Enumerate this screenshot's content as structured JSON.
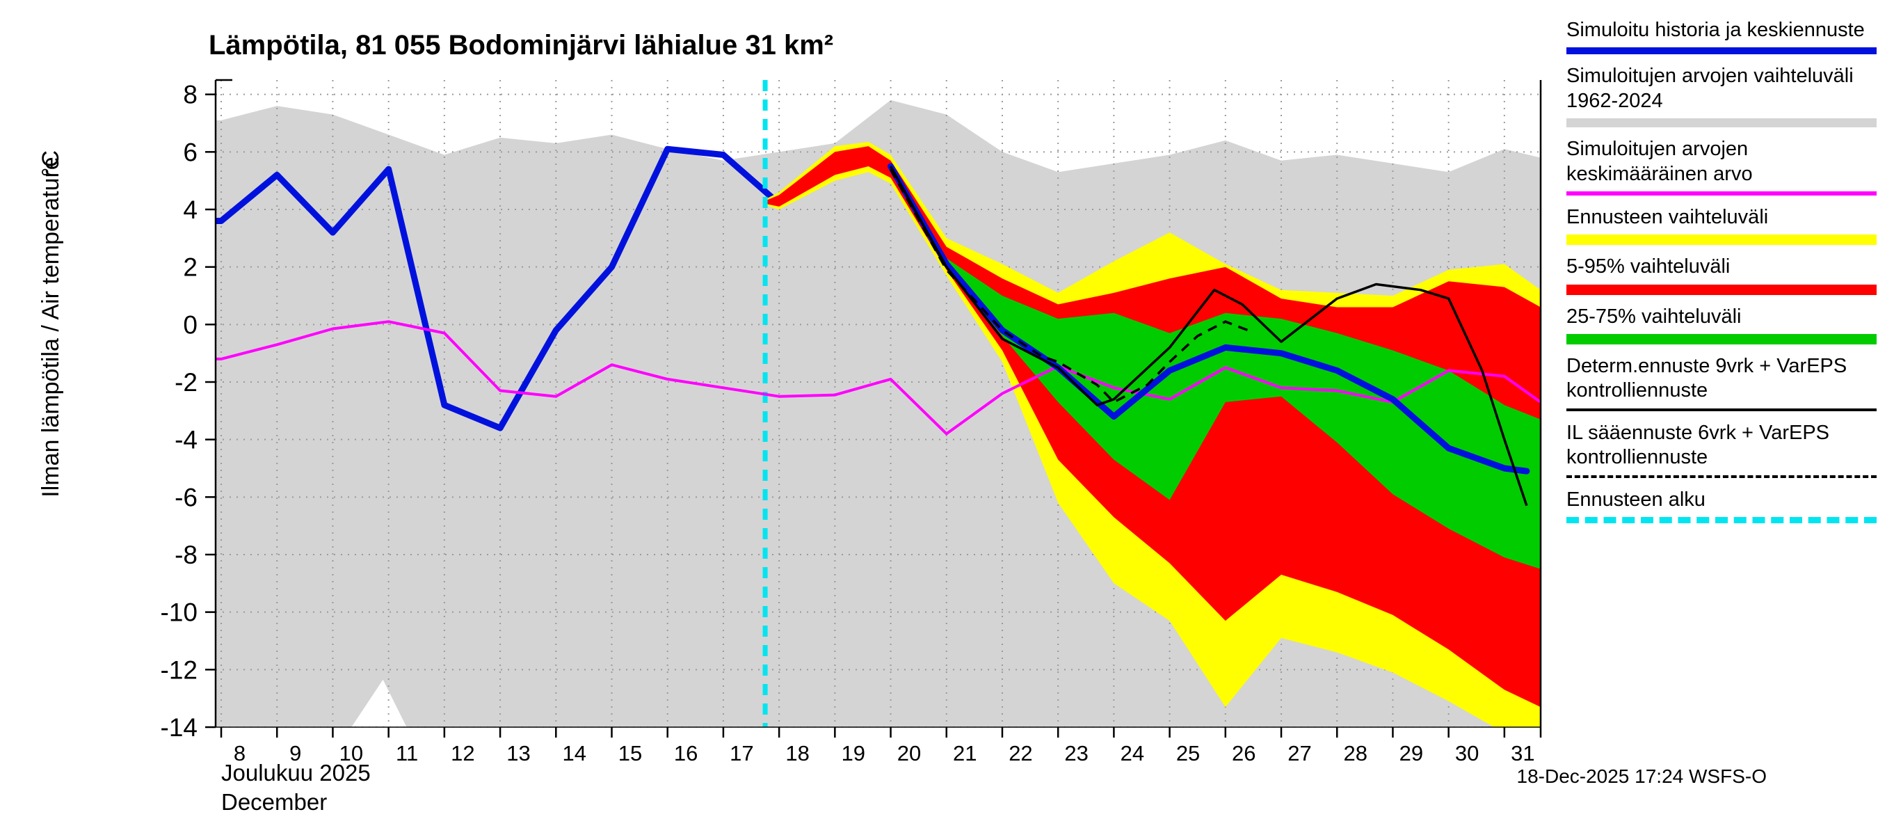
{
  "chart_data": {
    "type": "line",
    "title": "Lämpötila, 81 055 Bodominjärvi lähialue 31 km²",
    "ylabel": "Ilman lämpötila / Air temperature",
    "ylabel_unit": "°C",
    "xlabel_month": "Joulukuu 2025",
    "xlabel_month_en": "December",
    "ylim": [
      -14,
      8
    ],
    "yticks": [
      8,
      6,
      4,
      2,
      0,
      -2,
      -4,
      -6,
      -8,
      -10,
      -12,
      -14
    ],
    "xticks": [
      8,
      9,
      10,
      11,
      12,
      13,
      14,
      15,
      16,
      17,
      18,
      19,
      20,
      21,
      22,
      23,
      24,
      25,
      26,
      27,
      28,
      29,
      30,
      31
    ],
    "forecast_start_x": 17.75,
    "colors": {
      "history_mean": "#0011dd",
      "history_range": "#d4d4d4",
      "historical_mean": "#ff00ff",
      "forecast_full": "#ffff00",
      "forecast_5_95": "#ff0000",
      "forecast_25_75": "#00cc00",
      "determ": "#000000",
      "il": "#000000",
      "forecast_start": "#00e5f0",
      "grid": "#9a9a9a"
    },
    "bands": {
      "history_range": {
        "x_upper": [
          7.9,
          8,
          9,
          10,
          11,
          12,
          13,
          14,
          15,
          16,
          17,
          18,
          19,
          20,
          21,
          22,
          23,
          24,
          25,
          26,
          27,
          28,
          29,
          30,
          31,
          31.65
        ],
        "upper": [
          7.1,
          7.1,
          7.6,
          7.3,
          6.6,
          5.9,
          6.5,
          6.3,
          6.6,
          6.1,
          5.7,
          6.0,
          6.3,
          7.8,
          7.3,
          6.0,
          5.3,
          5.6,
          5.9,
          6.4,
          5.7,
          5.9,
          5.6,
          5.3,
          6.1,
          5.8
        ],
        "x_lower": [
          7.9,
          10.3,
          10.9,
          11.35,
          31.65
        ],
        "lower": [
          -15,
          -14.1,
          -12.35,
          -14.1,
          -15
        ]
      },
      "forecast_full": {
        "x": [
          17.75,
          18,
          19,
          19.6,
          20,
          21,
          22,
          23,
          24,
          25,
          26,
          27,
          28,
          29,
          30,
          31,
          31.65
        ],
        "upper": [
          4.35,
          4.6,
          6.2,
          6.35,
          5.9,
          3.0,
          2.1,
          1.1,
          2.2,
          3.2,
          2.1,
          1.2,
          1.1,
          1.0,
          1.9,
          2.1,
          1.2
        ],
        "lower": [
          4.15,
          4.0,
          5.0,
          5.3,
          4.9,
          1.7,
          -1.3,
          -6.2,
          -9.0,
          -10.3,
          -13.3,
          -10.9,
          -11.4,
          -12.1,
          -13.1,
          -14.2,
          -14.6
        ]
      },
      "forecast_5_95": {
        "x": [
          17.75,
          18,
          19,
          19.6,
          20,
          21,
          22,
          23,
          24,
          25,
          26,
          27,
          28,
          29,
          30,
          31,
          31.65
        ],
        "upper": [
          4.3,
          4.5,
          6.0,
          6.2,
          5.7,
          2.7,
          1.6,
          0.7,
          1.1,
          1.6,
          2.0,
          0.9,
          0.6,
          0.6,
          1.5,
          1.3,
          0.6
        ],
        "lower": [
          4.2,
          4.1,
          5.2,
          5.5,
          5.1,
          1.9,
          -0.9,
          -4.7,
          -6.7,
          -8.3,
          -10.3,
          -8.7,
          -9.3,
          -10.1,
          -11.3,
          -12.7,
          -13.3
        ]
      },
      "forecast_25_75": {
        "x": [
          21,
          22,
          23,
          24,
          25,
          26,
          27,
          28,
          29,
          30,
          31,
          31.65
        ],
        "upper": [
          2.3,
          1.0,
          0.2,
          0.4,
          -0.3,
          0.4,
          0.2,
          -0.3,
          -0.9,
          -1.6,
          -2.8,
          -3.3
        ],
        "lower": [
          2.0,
          -0.4,
          -2.7,
          -4.7,
          -6.1,
          -2.7,
          -2.5,
          -4.1,
          -5.9,
          -7.1,
          -8.1,
          -8.5
        ]
      }
    },
    "series": {
      "sim_history_mean": {
        "x": [
          7.9,
          8,
          9,
          10,
          11,
          12,
          13,
          14,
          15,
          16,
          17,
          18,
          19,
          20,
          21,
          22,
          23,
          24,
          25,
          26,
          27,
          28,
          29,
          30,
          31,
          31.4
        ],
        "y": [
          3.6,
          3.6,
          5.2,
          3.2,
          5.4,
          -2.8,
          -3.6,
          -0.2,
          2.0,
          6.1,
          5.9,
          4.2,
          5.4,
          5.5,
          2.1,
          -0.2,
          -1.5,
          -3.2,
          -1.6,
          -0.8,
          -1.0,
          -1.6,
          -2.6,
          -4.3,
          -5.0,
          -5.1
        ]
      },
      "historical_mean": {
        "x": [
          7.9,
          8,
          9,
          10,
          11,
          12,
          13,
          14,
          15,
          16,
          17,
          18,
          19,
          20,
          21,
          22,
          23,
          24,
          25,
          26,
          27,
          28,
          29,
          30,
          31,
          31.65
        ],
        "y": [
          -1.2,
          -1.2,
          -0.7,
          -0.15,
          0.1,
          -0.3,
          -2.3,
          -2.5,
          -1.4,
          -1.9,
          -2.2,
          -2.5,
          -2.45,
          -1.9,
          -3.8,
          -2.4,
          -1.45,
          -2.2,
          -2.6,
          -1.5,
          -2.2,
          -2.3,
          -2.7,
          -1.6,
          -1.8,
          -2.7
        ]
      },
      "determ_forecast": {
        "x": [
          20,
          21,
          22,
          23,
          23.7,
          24,
          25,
          25.8,
          26.3,
          27,
          28,
          28.7,
          29.5,
          30,
          30.6,
          31,
          31.4
        ],
        "y": [
          5.5,
          2.0,
          -0.5,
          -1.5,
          -2.8,
          -2.6,
          -0.8,
          1.2,
          0.7,
          -0.6,
          0.9,
          1.4,
          1.2,
          0.9,
          -1.6,
          -4.0,
          -6.3
        ]
      },
      "il_forecast": {
        "x": [
          20,
          21,
          22,
          22.7,
          23,
          23.7,
          24,
          24.6,
          25,
          25.5,
          26,
          26.4
        ],
        "y": [
          5.4,
          1.9,
          -0.2,
          -1.1,
          -1.3,
          -2.1,
          -2.7,
          -2.1,
          -1.3,
          -0.4,
          0.1,
          -0.2
        ]
      }
    }
  },
  "legend": {
    "entries": [
      {
        "key": "sim-history-mean",
        "label": "Simuloitu historia ja keskiennuste",
        "color": "#0011dd",
        "style": "solid",
        "thickness": 10
      },
      {
        "key": "sim-range",
        "label": "Simuloitujen arvojen vaihteluväli 1962-2024",
        "color": "#d4d4d4",
        "style": "solid",
        "thickness": 13
      },
      {
        "key": "sim-mean-value",
        "label": "Simuloitujen arvojen keskimääräinen arvo",
        "color": "#ff00ff",
        "style": "solid",
        "thickness": 6
      },
      {
        "key": "forecast-range",
        "label": "Ennusteen vaihteluväli",
        "color": "#ffff00",
        "style": "solid",
        "thickness": 15
      },
      {
        "key": "range-5-95",
        "label": "5-95% vaihteluväli",
        "color": "#ff0000",
        "style": "solid",
        "thickness": 15
      },
      {
        "key": "range-25-75",
        "label": "25-75% vaihteluväli",
        "color": "#00cc00",
        "style": "solid",
        "thickness": 15
      },
      {
        "key": "determ-forecast",
        "label": "Determ.ennuste 9vrk + VarEPS kontrolliennuste",
        "color": "#000000",
        "style": "solid",
        "thickness": 4
      },
      {
        "key": "il-forecast",
        "label": "IL sääennuste 6vrk  + VarEPS kontrolliennuste",
        "color": "#000000",
        "style": "dashed",
        "thickness": 4
      },
      {
        "key": "forecast-start",
        "label": "Ennusteen alku",
        "color": "#00e5f0",
        "style": "dashed",
        "thickness": 9
      }
    ]
  },
  "footer": {
    "timestamp": "18-Dec-2025 17:24 WSFS-O"
  }
}
